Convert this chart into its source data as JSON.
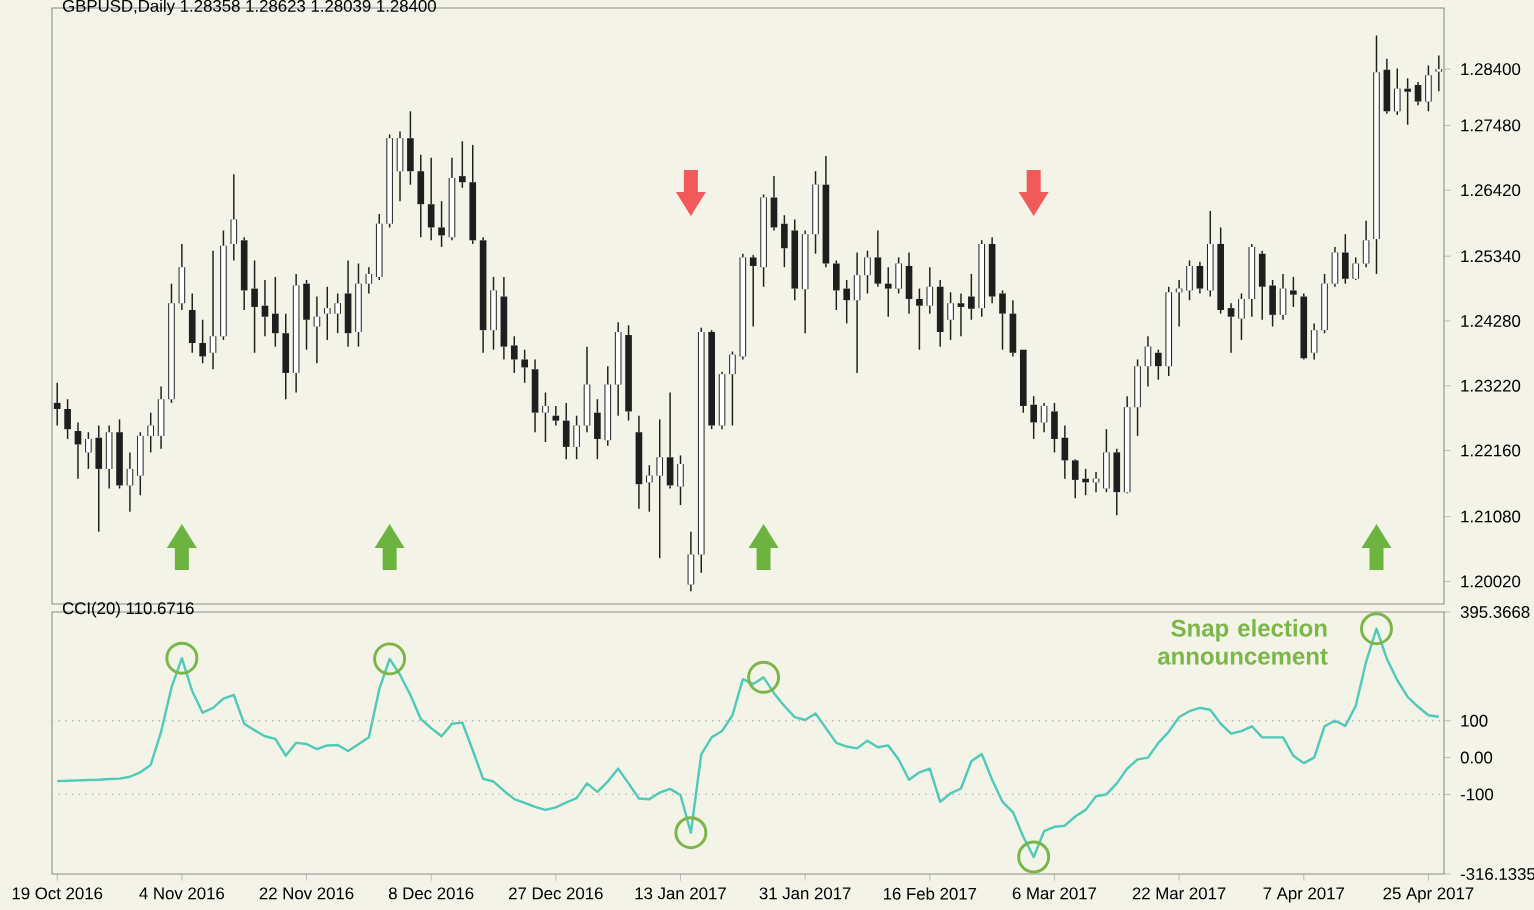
{
  "chart_data": [
    {
      "type": "candlestick",
      "title": "GBPUSD,Daily 1.28358 1.28623 1.28039 1.28400",
      "categories": [
        null,
        null,
        null,
        null,
        null,
        null,
        null,
        null,
        null,
        null,
        null,
        null,
        null,
        null,
        null,
        null,
        null,
        null,
        null,
        null,
        null,
        null,
        null,
        null,
        null,
        null,
        null,
        null,
        null,
        null,
        null,
        null,
        null,
        null,
        null,
        null,
        null,
        null,
        null,
        null,
        null,
        null,
        null,
        null,
        null,
        null,
        null,
        null,
        null,
        null,
        null,
        null,
        null,
        null,
        null,
        null,
        null,
        null,
        null,
        null,
        null,
        null,
        null,
        null,
        null,
        null,
        null,
        null,
        null,
        null,
        null,
        null,
        null,
        null,
        null,
        null,
        null,
        null,
        null,
        null,
        null,
        null,
        null,
        null,
        null,
        null,
        null,
        null,
        null,
        null,
        null,
        null,
        null,
        null,
        null,
        null,
        null,
        null,
        null,
        null,
        null,
        null,
        null,
        null,
        null,
        null,
        null,
        null,
        null,
        null,
        null,
        null,
        null,
        null,
        null,
        null,
        null,
        null,
        null,
        null,
        null,
        null,
        null,
        null,
        null,
        null,
        null,
        null,
        null,
        null,
        null,
        null,
        null,
        null
      ],
      "ohlc": [
        [
          1.2294,
          1.2327,
          1.2257,
          1.2284
        ],
        [
          1.2284,
          1.23,
          1.2235,
          1.2251
        ],
        [
          1.2248,
          1.2262,
          1.217,
          1.2226
        ],
        [
          1.2213,
          1.2246,
          1.2186,
          1.2235
        ],
        [
          1.2237,
          1.2257,
          1.2083,
          1.2186
        ],
        [
          1.2186,
          1.2257,
          1.2154,
          1.2246
        ],
        [
          1.2246,
          1.2267,
          1.2154,
          1.2159
        ],
        [
          1.2159,
          1.2213,
          1.2116,
          1.2186
        ],
        [
          1.2175,
          1.2246,
          1.2143,
          1.224
        ],
        [
          1.224,
          1.2278,
          1.2213,
          1.2257
        ],
        [
          1.224,
          1.2321,
          1.2219,
          1.23
        ],
        [
          1.23,
          1.2489,
          1.2294,
          1.2457
        ],
        [
          1.2457,
          1.2554,
          1.2446,
          1.2516
        ],
        [
          1.2446,
          1.2473,
          1.2376,
          1.2392
        ],
        [
          1.2392,
          1.243,
          1.2359,
          1.237
        ],
        [
          1.2376,
          1.2543,
          1.2349,
          1.2403
        ],
        [
          1.2403,
          1.2576,
          1.2397,
          1.2551
        ],
        [
          1.2554,
          1.2668,
          1.2527,
          1.2594
        ],
        [
          1.256,
          1.2565,
          1.2446,
          1.2478
        ],
        [
          1.2481,
          1.2527,
          1.2376,
          1.2451
        ],
        [
          1.2453,
          1.2495,
          1.2403,
          1.2435
        ],
        [
          1.244,
          1.25,
          1.2386,
          1.2408
        ],
        [
          1.2408,
          1.244,
          1.23,
          1.2343
        ],
        [
          1.2343,
          1.2505,
          1.2311,
          1.2486
        ],
        [
          1.2489,
          1.2495,
          1.2381,
          1.243
        ],
        [
          1.2419,
          1.2468,
          1.2359,
          1.2435
        ],
        [
          1.244,
          1.2484,
          1.2397,
          1.2449
        ],
        [
          1.244,
          1.2473,
          1.2408,
          1.2457
        ],
        [
          1.2473,
          1.2527,
          1.2386,
          1.2408
        ],
        [
          1.241,
          1.2522,
          1.2386,
          1.2489
        ],
        [
          1.2489,
          1.2516,
          1.2473,
          1.2505
        ],
        [
          1.25,
          1.2603,
          1.2495,
          1.2587
        ],
        [
          1.2587,
          1.2733,
          1.2581,
          1.2727
        ],
        [
          1.2673,
          1.2738,
          1.2624,
          1.2727
        ],
        [
          1.2727,
          1.2771,
          1.2651,
          1.2673
        ],
        [
          1.2673,
          1.27,
          1.2565,
          1.2619
        ],
        [
          1.2619,
          1.2695,
          1.256,
          1.2581
        ],
        [
          1.2581,
          1.2624,
          1.2549,
          1.2568
        ],
        [
          1.2565,
          1.2695,
          1.256,
          1.2662
        ],
        [
          1.2665,
          1.2722,
          1.2646,
          1.2655
        ],
        [
          1.2655,
          1.2716,
          1.2554,
          1.256
        ],
        [
          1.256,
          1.2565,
          1.2376,
          1.2413
        ],
        [
          1.2413,
          1.25,
          1.2381,
          1.2478
        ],
        [
          1.2468,
          1.25,
          1.2365,
          1.2386
        ],
        [
          1.2388,
          1.2403,
          1.2343,
          1.2365
        ],
        [
          1.2365,
          1.2381,
          1.2327,
          1.2352
        ],
        [
          1.2349,
          1.2365,
          1.2246,
          1.2278
        ],
        [
          1.2278,
          1.2311,
          1.223,
          1.2289
        ],
        [
          1.2273,
          1.2289,
          1.2257,
          1.2265
        ],
        [
          1.2265,
          1.2294,
          1.2202,
          1.2222
        ],
        [
          1.2222,
          1.2273,
          1.2202,
          1.2257
        ],
        [
          1.2257,
          1.2386,
          1.2246,
          1.2324
        ],
        [
          1.2278,
          1.23,
          1.2202,
          1.2235
        ],
        [
          1.2233,
          1.2354,
          1.2224,
          1.2324
        ],
        [
          1.2324,
          1.2426,
          1.2273,
          1.241
        ],
        [
          1.2405,
          1.2421,
          1.2265,
          1.228
        ],
        [
          1.2246,
          1.2273,
          1.2121,
          1.2161
        ],
        [
          1.2164,
          1.2192,
          1.2116,
          1.2175
        ],
        [
          1.2175,
          1.2267,
          1.204,
          1.2205
        ],
        [
          1.2205,
          1.2311,
          1.2154,
          1.2159
        ],
        [
          1.2157,
          1.2208,
          1.2127,
          1.2194
        ],
        [
          1.1997,
          1.2083,
          1.1986,
          1.2046
        ],
        [
          1.2046,
          1.2417,
          1.2016,
          1.241
        ],
        [
          1.241,
          1.2413,
          1.2251,
          1.2257
        ],
        [
          1.2257,
          1.2345,
          1.2251,
          1.2341
        ],
        [
          1.2341,
          1.2378,
          1.2257,
          1.2373
        ],
        [
          1.237,
          1.2538,
          1.2365,
          1.2532
        ],
        [
          1.2532,
          1.2536,
          1.2419,
          1.2518
        ],
        [
          1.2516,
          1.2635,
          1.2484,
          1.263
        ],
        [
          1.263,
          1.2665,
          1.2576,
          1.2581
        ],
        [
          1.2587,
          1.2601,
          1.2516,
          1.2547
        ],
        [
          1.2576,
          1.2594,
          1.2462,
          1.2481
        ],
        [
          1.248,
          1.2576,
          1.2408,
          1.257
        ],
        [
          1.257,
          1.2673,
          1.2538,
          1.2651
        ],
        [
          1.2651,
          1.2698,
          1.2516,
          1.2522
        ],
        [
          1.2522,
          1.2527,
          1.2446,
          1.2478
        ],
        [
          1.2481,
          1.2495,
          1.2424,
          1.2462
        ],
        [
          1.2462,
          1.254,
          1.2343,
          1.2503
        ],
        [
          1.2503,
          1.2543,
          1.2473,
          1.2532
        ],
        [
          1.2532,
          1.2576,
          1.2484,
          1.2489
        ],
        [
          1.2489,
          1.2516,
          1.2435,
          1.2481
        ],
        [
          1.2481,
          1.2532,
          1.2473,
          1.2522
        ],
        [
          1.2518,
          1.254,
          1.244,
          1.2464
        ],
        [
          1.2464,
          1.2481,
          1.2381,
          1.2453
        ],
        [
          1.2453,
          1.2516,
          1.244,
          1.2484
        ],
        [
          1.2484,
          1.2495,
          1.2386,
          1.241
        ],
        [
          1.243,
          1.2475,
          1.2397,
          1.2457
        ],
        [
          1.2457,
          1.2473,
          1.2403,
          1.2451
        ],
        [
          1.2468,
          1.2505,
          1.243,
          1.2448
        ],
        [
          1.2449,
          1.256,
          1.2435,
          1.2554
        ],
        [
          1.2554,
          1.2565,
          1.2457,
          1.2468
        ],
        [
          1.2473,
          1.2478,
          1.2381,
          1.244
        ],
        [
          1.244,
          1.2462,
          1.237,
          1.2376
        ],
        [
          1.2381,
          1.2381,
          1.2278,
          1.2289
        ],
        [
          1.2291,
          1.2305,
          1.2235,
          1.2262
        ],
        [
          1.2262,
          1.2294,
          1.2246,
          1.2289
        ],
        [
          1.228,
          1.2294,
          1.2213,
          1.2235
        ],
        [
          1.2237,
          1.2257,
          1.217,
          1.22
        ],
        [
          1.22,
          1.2202,
          1.2138,
          1.2168
        ],
        [
          1.217,
          1.2186,
          1.2143,
          1.2164
        ],
        [
          1.2164,
          1.2181,
          1.2148,
          1.217
        ],
        [
          1.2154,
          1.2251,
          1.2148,
          1.2213
        ],
        [
          1.2213,
          1.2219,
          1.211,
          1.2148
        ],
        [
          1.2148,
          1.2305,
          1.2146,
          1.2287
        ],
        [
          1.2287,
          1.2365,
          1.224,
          1.2354
        ],
        [
          1.2354,
          1.2403,
          1.2321,
          1.2386
        ],
        [
          1.2376,
          1.2381,
          1.2332,
          1.2354
        ],
        [
          1.2354,
          1.2484,
          1.2338,
          1.2475
        ],
        [
          1.2475,
          1.2495,
          1.2419,
          1.2481
        ],
        [
          1.2478,
          1.2527,
          1.2462,
          1.2518
        ],
        [
          1.2518,
          1.2525,
          1.2473,
          1.2481
        ],
        [
          1.2478,
          1.2608,
          1.2468,
          1.2554
        ],
        [
          1.2554,
          1.2581,
          1.244,
          1.2446
        ],
        [
          1.2449,
          1.2457,
          1.2376,
          1.2435
        ],
        [
          1.2432,
          1.2473,
          1.2397,
          1.2464
        ],
        [
          1.2464,
          1.2554,
          1.2435,
          1.2549
        ],
        [
          1.2538,
          1.2543,
          1.243,
          1.2484
        ],
        [
          1.2486,
          1.2495,
          1.2419,
          1.2438
        ],
        [
          1.2438,
          1.2505,
          1.243,
          1.2481
        ],
        [
          1.2478,
          1.25,
          1.2451,
          1.2471
        ],
        [
          1.2468,
          1.2473,
          1.2365,
          1.2367
        ],
        [
          1.2376,
          1.2424,
          1.2365,
          1.2413
        ],
        [
          1.2413,
          1.2505,
          1.2408,
          1.2489
        ],
        [
          1.2489,
          1.2549,
          1.2484,
          1.254
        ],
        [
          1.254,
          1.257,
          1.2489,
          1.2497
        ],
        [
          1.2497,
          1.2532,
          1.2495,
          1.2522
        ],
        [
          1.2522,
          1.2592,
          1.2516,
          1.256
        ],
        [
          1.2562,
          1.2895,
          1.2505,
          1.2835
        ],
        [
          1.2839,
          1.2857,
          1.2767,
          1.2771
        ],
        [
          1.2771,
          1.2841,
          1.2765,
          1.2808
        ],
        [
          1.2808,
          1.2825,
          1.2749,
          1.2803
        ],
        [
          1.2814,
          1.2819,
          1.2781,
          1.2787
        ],
        [
          1.2787,
          1.2846,
          1.2771,
          1.283
        ],
        [
          1.28358,
          1.28623,
          1.28039,
          1.284
        ]
      ],
      "ylim": [
        1.1965,
        1.294
      ],
      "yticks": [
        {
          "value": 1.2002,
          "label": "1.20020"
        },
        {
          "value": 1.2108,
          "label": "1.21080"
        },
        {
          "value": 1.2216,
          "label": "1.22160"
        },
        {
          "value": 1.2322,
          "label": "1.23220"
        },
        {
          "value": 1.2428,
          "label": "1.24280"
        },
        {
          "value": 1.2534,
          "label": "1.25340"
        },
        {
          "value": 1.2642,
          "label": "1.26420"
        },
        {
          "value": 1.2748,
          "label": "1.27480"
        },
        {
          "value": 1.284,
          "label": "1.28400"
        }
      ],
      "tick_labels": "y"
    },
    {
      "type": "line",
      "title": "CCI(20) 110.6716",
      "categories": [
        "19 Oct 2016",
        null,
        null,
        null,
        null,
        null,
        null,
        null,
        null,
        null,
        null,
        null,
        "4 Nov 2016",
        null,
        null,
        null,
        null,
        null,
        null,
        null,
        null,
        null,
        null,
        null,
        "22 Nov 2016",
        null,
        null,
        null,
        null,
        null,
        null,
        null,
        null,
        null,
        null,
        null,
        "8 Dec 2016",
        null,
        null,
        null,
        null,
        null,
        null,
        null,
        null,
        null,
        null,
        null,
        "27 Dec 2016",
        null,
        null,
        null,
        null,
        null,
        null,
        null,
        null,
        null,
        null,
        null,
        "13 Jan 2017",
        null,
        null,
        null,
        null,
        null,
        null,
        null,
        null,
        null,
        null,
        null,
        "31 Jan 2017",
        null,
        null,
        null,
        null,
        null,
        null,
        null,
        null,
        null,
        null,
        null,
        "16 Feb 2017",
        null,
        null,
        null,
        null,
        null,
        null,
        null,
        null,
        null,
        null,
        null,
        "6 Mar 2017",
        null,
        null,
        null,
        null,
        null,
        null,
        null,
        null,
        null,
        null,
        null,
        "22 Mar 2017",
        null,
        null,
        null,
        null,
        null,
        null,
        null,
        null,
        null,
        null,
        null,
        "7 Apr 2017",
        null,
        null,
        null,
        null,
        null,
        null,
        null,
        null,
        null,
        null,
        null,
        "25 Apr 2017",
        null
      ],
      "values": [
        -64,
        -63,
        -62,
        -61,
        -60,
        -58,
        -57,
        -52,
        -40,
        -20,
        70,
        190,
        270,
        180,
        122,
        135,
        160,
        170,
        92,
        74,
        58,
        51,
        5,
        40,
        37,
        23,
        33,
        34,
        18,
        36,
        55,
        185,
        268,
        225,
        170,
        105,
        80,
        58,
        92,
        95,
        20,
        -58,
        -65,
        -90,
        -113,
        -123,
        -134,
        -142,
        -135,
        -122,
        -110,
        -70,
        -93,
        -65,
        -30,
        -70,
        -111,
        -113,
        -95,
        -85,
        -102,
        -204,
        9,
        55,
        72,
        115,
        213,
        200,
        218,
        175,
        140,
        110,
        102,
        120,
        80,
        40,
        30,
        25,
        46,
        28,
        33,
        -5,
        -60,
        -40,
        -30,
        -120,
        -97,
        -84,
        -10,
        10,
        -60,
        -120,
        -148,
        -215,
        -270,
        -200,
        -188,
        -185,
        -160,
        -142,
        -105,
        -100,
        -70,
        -30,
        -5,
        0,
        40,
        70,
        110,
        126,
        135,
        130,
        92,
        65,
        72,
        85,
        55,
        55,
        55,
        5,
        -15,
        0,
        85,
        100,
        86,
        140,
        260,
        350,
        268,
        210,
        165,
        138,
        115,
        111
      ],
      "color": "#4fc9b8",
      "ylim": [
        -316.1335,
        395.3668
      ],
      "yticks": [
        -316.1335,
        -100,
        {
          "value": 0,
          "label": "0.00"
        },
        100,
        395.3668
      ],
      "ref_lines": [
        {
          "axis": "y",
          "value": 100,
          "line_style": "dotted",
          "color": "#b4b4b4"
        },
        {
          "axis": "y",
          "value": -100,
          "line_style": "dotted",
          "color": "#b4b4b4"
        }
      ],
      "annotations": [
        "Snap election announcement"
      ]
    }
  ]
}
